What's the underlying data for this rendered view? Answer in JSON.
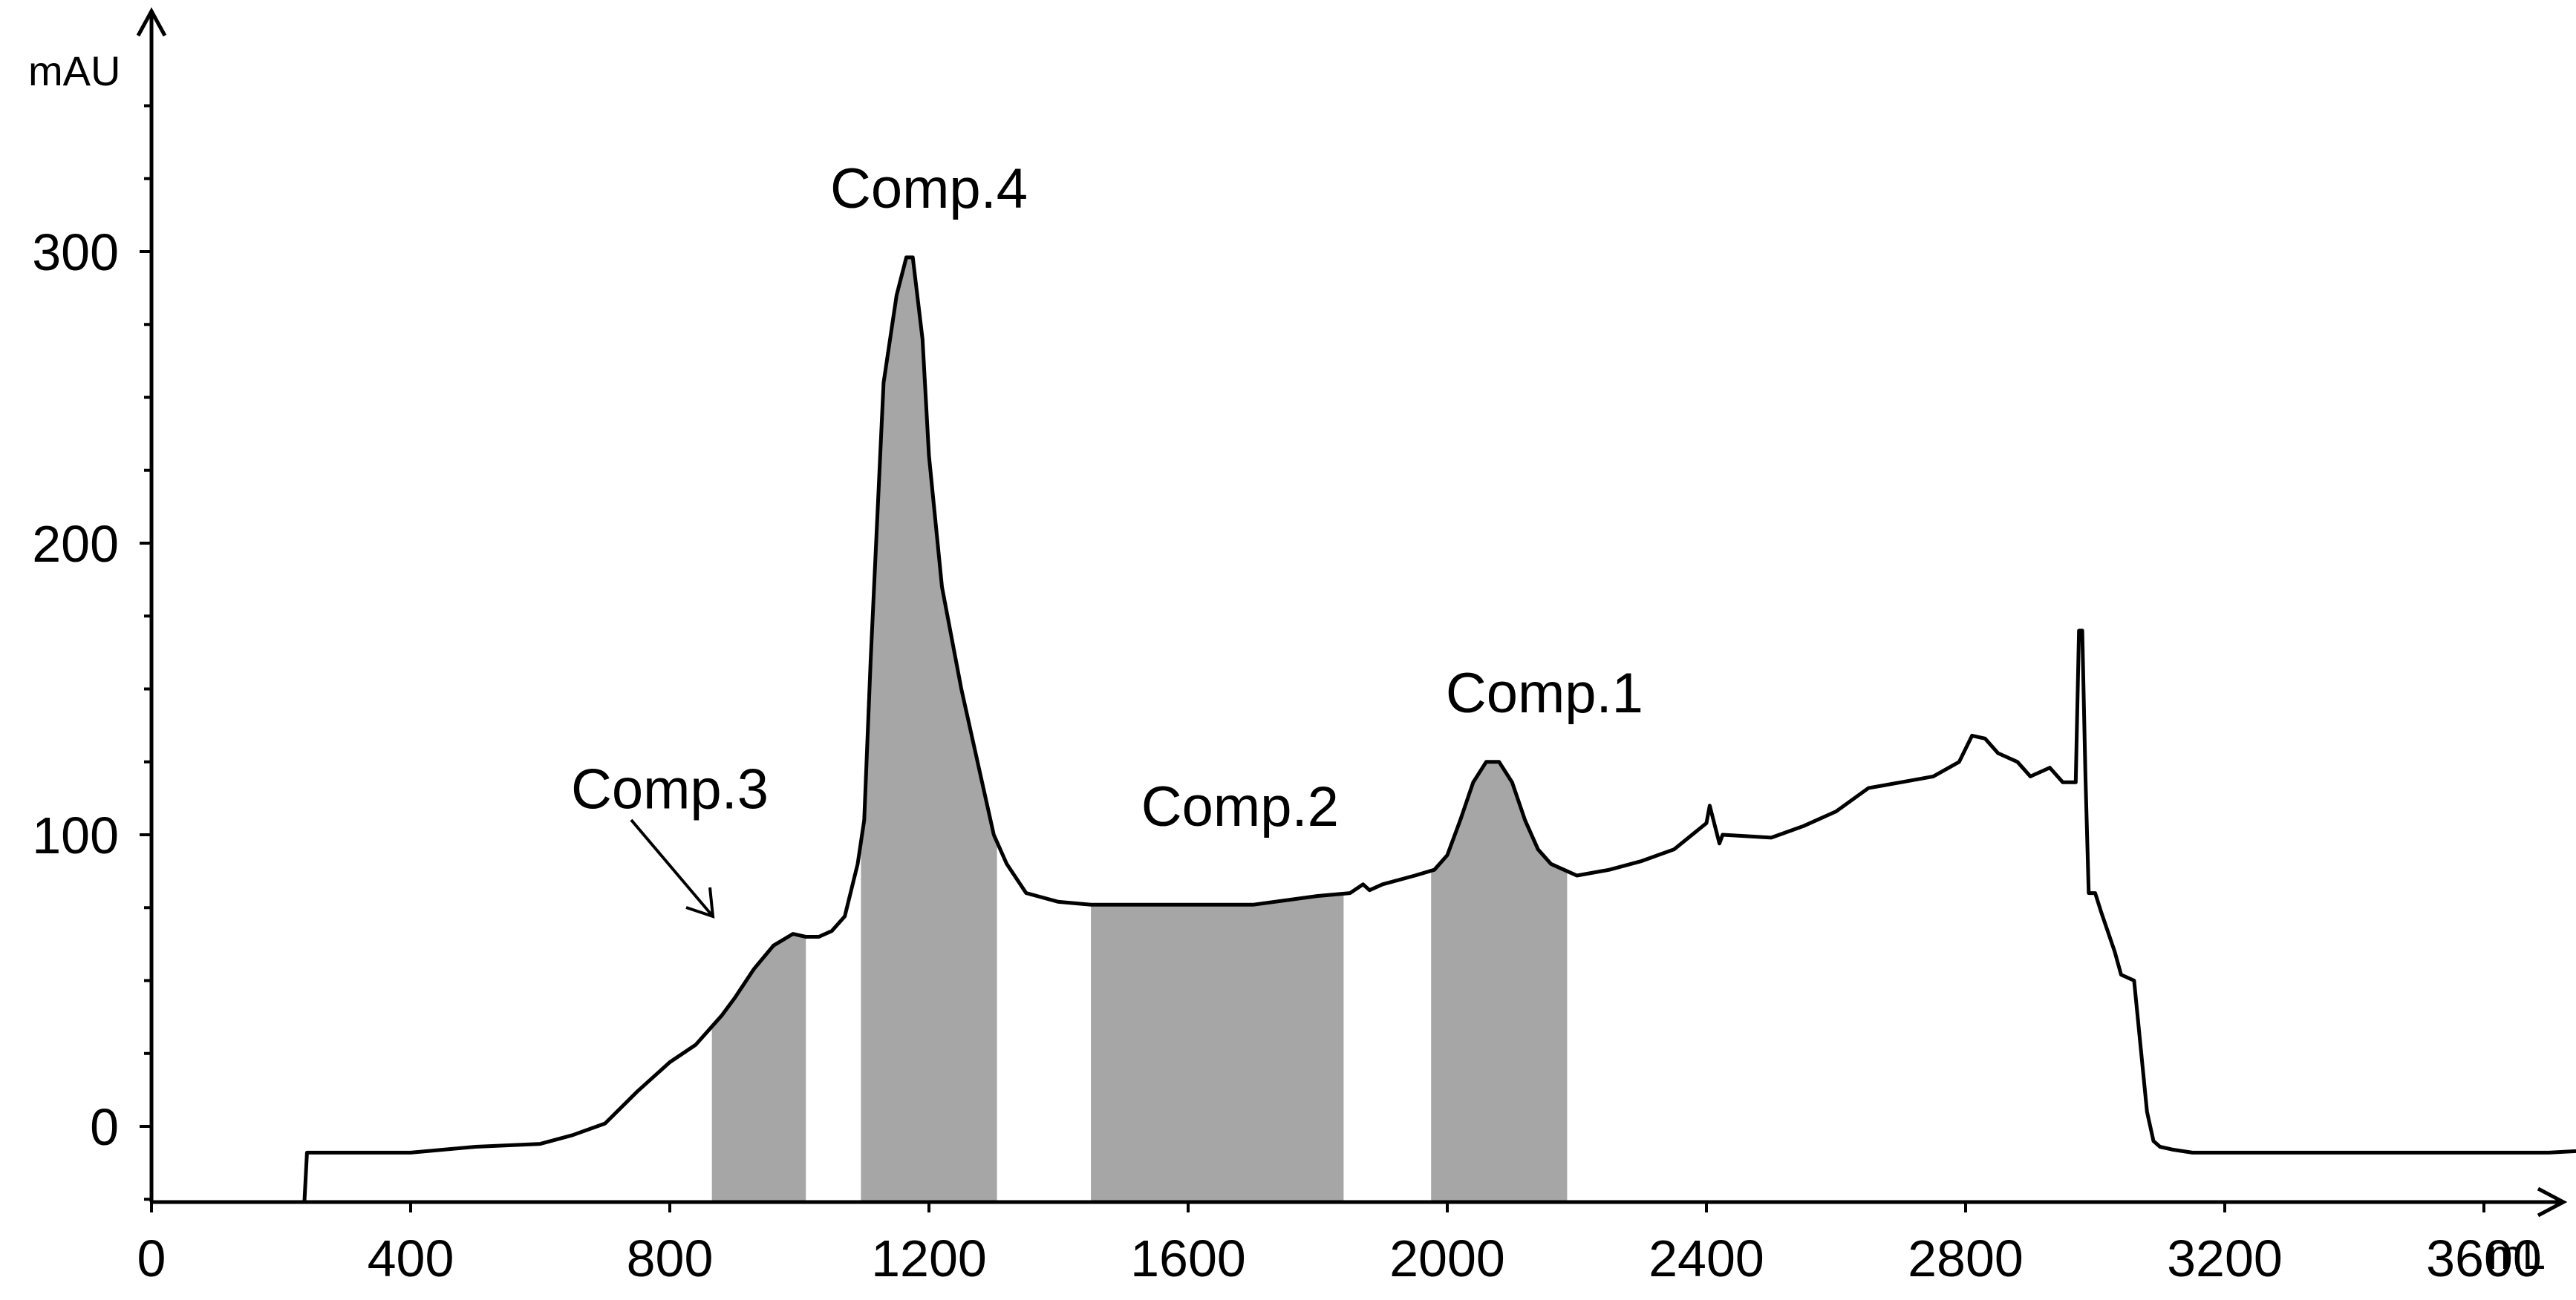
{
  "chart_data": {
    "type": "area",
    "title": "",
    "xlabel": "mL",
    "ylabel": "mAU",
    "xlim": [
      0,
      3850
    ],
    "ylim": [
      -26,
      365
    ],
    "x_ticks": [
      0,
      400,
      800,
      1200,
      1600,
      2000,
      2400,
      2800,
      3200,
      3600
    ],
    "x_tick_labels": [
      "0",
      "400",
      "800",
      "1200",
      "1600",
      "2000",
      "2400",
      "2800",
      "3200",
      "3600"
    ],
    "y_ticks": [
      0,
      100,
      200,
      300
    ],
    "y_tick_labels": [
      "0",
      "100",
      "200",
      "300"
    ],
    "grid": false,
    "line_color": "#000000",
    "fill_color": "#a6a6a6",
    "series": [
      {
        "x": [
          236,
          240,
          400,
          500,
          600,
          650,
          700,
          750,
          800,
          840,
          860,
          880,
          900,
          930,
          960,
          990,
          1010,
          1030,
          1050,
          1070,
          1090,
          1100,
          1110,
          1130,
          1150,
          1165,
          1175,
          1190,
          1200,
          1220,
          1250,
          1280,
          1300,
          1320,
          1350,
          1400,
          1450,
          1500,
          1600,
          1700,
          1800,
          1850,
          1870,
          1880,
          1900,
          1950,
          1980,
          2000,
          2020,
          2040,
          2060,
          2080,
          2100,
          2120,
          2140,
          2160,
          2180,
          2200,
          2250,
          2300,
          2350,
          2400,
          2405,
          2420,
          2425,
          2500,
          2550,
          2600,
          2650,
          2700,
          2750,
          2790,
          2810,
          2830,
          2850,
          2880,
          2900,
          2930,
          2950,
          2970,
          2975,
          2980,
          2985,
          2990,
          3000,
          3010,
          3030,
          3040,
          3060,
          3080,
          3090,
          3100,
          3120,
          3150,
          3200,
          3300,
          3500,
          3700,
          3860,
          3861
        ],
        "y": [
          -26,
          -9,
          -9,
          -7,
          -6,
          -3,
          1,
          12,
          22,
          28,
          33,
          38,
          44,
          54,
          62,
          66,
          65,
          65,
          67,
          72,
          90,
          105,
          160,
          255,
          285,
          298,
          298,
          270,
          230,
          185,
          150,
          120,
          100,
          90,
          80,
          77,
          76,
          76,
          76,
          76,
          79,
          80,
          83,
          81,
          83,
          86,
          88,
          93,
          105,
          118,
          125,
          125,
          118,
          105,
          95,
          90,
          88,
          86,
          88,
          91,
          95,
          104,
          110,
          97,
          100,
          99,
          103,
          108,
          116,
          118,
          120,
          125,
          134,
          133,
          128,
          125,
          120,
          123,
          118,
          118,
          170,
          170,
          120,
          80,
          80,
          73,
          60,
          52,
          50,
          5,
          -5,
          -7,
          -8,
          -9,
          -9,
          -9,
          -9,
          -9,
          -7,
          -26
        ],
        "shaded_regions": [
          [
            865,
            1010
          ],
          [
            1095,
            1305
          ],
          [
            1450,
            1840
          ],
          [
            1975,
            2185
          ]
        ]
      }
    ],
    "annotations": [
      {
        "text": "Comp.4",
        "x": 1200,
        "y": 315
      },
      {
        "text": "Comp.3",
        "x": 800,
        "y": 109
      },
      {
        "text": "Comp.2",
        "x": 1680,
        "y": 103
      },
      {
        "text": "Comp.1",
        "x": 2150,
        "y": 142
      }
    ]
  }
}
